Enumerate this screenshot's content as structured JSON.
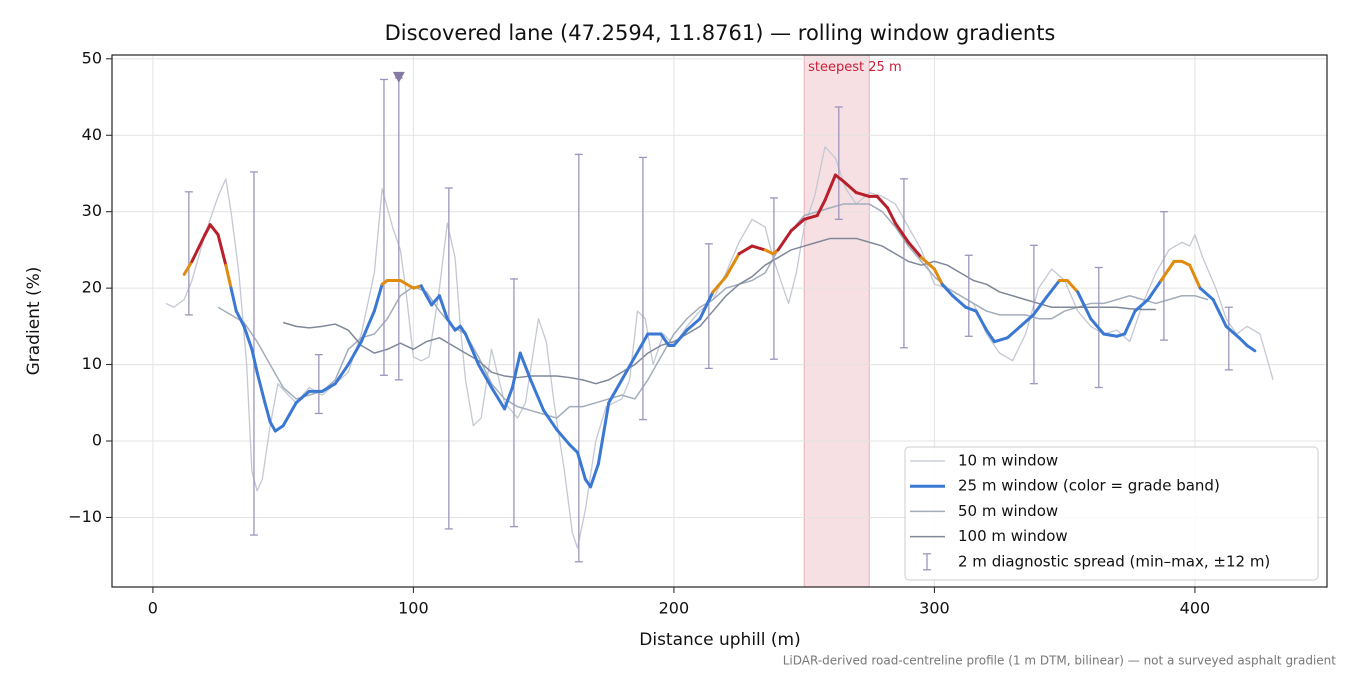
{
  "chart_data": {
    "type": "line",
    "title": "Discovered lane (47.2594, 11.8761) — rolling window gradients",
    "xlabel": "Distance uphill (m)",
    "ylabel": "Gradient (%)",
    "note": "LiDAR-derived road-centreline profile (1 m DTM, bilinear) — not a surveyed asphalt gradient",
    "xlim": [
      -15.7,
      450.7
    ],
    "ylim": [
      -19.1,
      50.5
    ],
    "xticks": [
      0,
      100,
      200,
      300,
      400
    ],
    "yticks": [
      {
        "value": -10,
        "label": "−10"
      },
      0,
      10,
      20,
      30,
      40,
      50
    ],
    "grid": true,
    "legend": "lower right",
    "highlight": {
      "start": 250,
      "end": 275,
      "label": "steepest 25 m",
      "color": "#c8203a"
    },
    "marker": {
      "x": 94.4,
      "y": 47.5,
      "color": "#857aa3"
    },
    "series": [
      {
        "name": "10 m window",
        "color": "#c3c8d3",
        "x": [
          5,
          8,
          12,
          15,
          20,
          25,
          28,
          30,
          33,
          36,
          38,
          40,
          42,
          45,
          48,
          52,
          55,
          60,
          65,
          70,
          75,
          80,
          85,
          88,
          92,
          95,
          97,
          100,
          103,
          106,
          110,
          113,
          116,
          118,
          120,
          123,
          126,
          130,
          135,
          140,
          143,
          148,
          151,
          154,
          158,
          161,
          163,
          166,
          170,
          174,
          180,
          183,
          186,
          189,
          192,
          196,
          200,
          205,
          210,
          215,
          220,
          225,
          230,
          235,
          238,
          242,
          244,
          247,
          250,
          254,
          258,
          262,
          266,
          270,
          275,
          280,
          285,
          290,
          295,
          300,
          305,
          310,
          315,
          320,
          325,
          330,
          335,
          340,
          345,
          350,
          355,
          360,
          365,
          370,
          375,
          380,
          385,
          390,
          395,
          398,
          400,
          403,
          408,
          412,
          416,
          420,
          425,
          430
        ],
        "values": [
          18,
          17.5,
          18.5,
          21,
          27,
          32,
          34.3,
          30,
          22,
          10,
          -4,
          -6.5,
          -5,
          2,
          7.5,
          6,
          5,
          7,
          6,
          7.5,
          9,
          14,
          22,
          33,
          28,
          25,
          20,
          11,
          10.5,
          11,
          20,
          28.5,
          24,
          15,
          8,
          2,
          3,
          12,
          5,
          3,
          5,
          16,
          13,
          5,
          -4,
          -12,
          -14,
          -9,
          0,
          4.5,
          5.5,
          8,
          17,
          16,
          10,
          14,
          12.5,
          15,
          17,
          18.5,
          22,
          26,
          29,
          28,
          24,
          20,
          18,
          22,
          28,
          32,
          38.5,
          37,
          33,
          31,
          32.5,
          32,
          31,
          28,
          25,
          20.5,
          20,
          19,
          18,
          14,
          11.5,
          10.5,
          14,
          20,
          22.5,
          21,
          17,
          15,
          14,
          14.5,
          13,
          18,
          22,
          25,
          26,
          25.5,
          27,
          24,
          20,
          16,
          14,
          15,
          14,
          8
        ]
      },
      {
        "name": "25 m window (color = grade band)",
        "color": "#3a78d4",
        "band_thresholds": [
          20,
          25
        ],
        "band_colors": [
          "#3a78d4",
          "#e08a0e",
          "#b81f2a"
        ],
        "x": [
          12,
          15,
          20,
          22,
          25,
          28,
          30,
          32,
          35,
          38,
          40,
          43,
          45,
          47,
          50,
          55,
          60,
          65,
          70,
          75,
          80,
          85,
          88,
          90,
          95,
          100,
          103,
          105,
          107,
          110,
          113,
          116,
          118,
          120,
          125,
          130,
          135,
          138,
          141,
          145,
          150,
          155,
          160,
          163,
          166,
          168,
          171,
          175,
          180,
          185,
          190,
          195,
          198,
          200,
          205,
          210,
          215,
          220,
          225,
          230,
          235,
          238,
          240,
          245,
          250,
          255,
          258,
          262,
          265,
          270,
          275,
          278,
          282,
          285,
          290,
          295,
          300,
          303,
          307,
          312,
          316,
          320,
          323,
          328,
          333,
          338,
          343,
          348,
          351,
          355,
          360,
          365,
          370,
          373,
          377,
          382,
          387,
          392,
          395,
          398,
          402,
          407,
          412,
          417,
          420,
          423
        ],
        "values": [
          21.8,
          23.5,
          27,
          28.3,
          27,
          23,
          20,
          17,
          15,
          12,
          9,
          5,
          2.5,
          1.3,
          2,
          5,
          6.5,
          6.5,
          7.5,
          10,
          13,
          17,
          20.5,
          21,
          21,
          20,
          20.3,
          19,
          17.8,
          19,
          16,
          14.5,
          15,
          14,
          10,
          7,
          4.2,
          7,
          11.5,
          8,
          4,
          1.5,
          -0.5,
          -1.5,
          -5,
          -6,
          -3,
          5,
          8,
          11,
          14,
          14,
          12.5,
          12.5,
          14.5,
          16,
          19.5,
          21.5,
          24.5,
          25.5,
          25,
          24.5,
          25,
          27.5,
          29,
          29.5,
          31.5,
          34.8,
          34,
          32.5,
          32,
          32,
          30.5,
          28.5,
          26,
          24,
          22.5,
          20.5,
          19,
          17.5,
          17,
          14.5,
          13,
          13.5,
          15,
          16.5,
          18.8,
          21,
          21,
          19.5,
          16,
          14,
          13.7,
          14,
          17,
          18.5,
          21,
          23.5,
          23.5,
          23,
          20,
          18.5,
          15,
          13.5,
          12.5,
          11.8
        ]
      },
      {
        "name": "50 m window",
        "color": "#a3adbb",
        "x": [
          25,
          30,
          35,
          40,
          45,
          50,
          55,
          60,
          65,
          70,
          75,
          80,
          85,
          90,
          95,
          100,
          105,
          110,
          115,
          120,
          125,
          130,
          135,
          140,
          145,
          150,
          155,
          160,
          165,
          170,
          175,
          180,
          185,
          190,
          195,
          200,
          205,
          210,
          215,
          220,
          225,
          230,
          235,
          240,
          245,
          250,
          255,
          260,
          265,
          270,
          275,
          280,
          285,
          290,
          295,
          300,
          305,
          310,
          315,
          320,
          325,
          330,
          335,
          340,
          345,
          350,
          355,
          360,
          365,
          370,
          375,
          380,
          385,
          390,
          395,
          400,
          405
        ],
        "values": [
          17.5,
          16.5,
          15.5,
          13,
          10,
          7,
          5.5,
          6,
          6.5,
          8,
          12,
          13.5,
          14,
          16,
          19,
          20.2,
          19.5,
          17,
          15,
          14,
          11,
          7.5,
          5.5,
          4.5,
          4,
          3.5,
          3,
          4.5,
          4.5,
          5,
          5.5,
          6,
          5.5,
          8,
          11,
          14,
          16,
          17.5,
          18.5,
          20,
          20.5,
          21,
          22,
          25,
          27.5,
          29.5,
          30,
          30.5,
          31,
          31,
          31,
          30,
          28,
          25.5,
          23.5,
          21.5,
          20,
          19,
          18,
          17,
          16.5,
          16.5,
          16.5,
          16,
          16,
          17,
          17.5,
          18,
          18,
          18.5,
          19,
          18.5,
          18,
          18.5,
          19,
          19,
          18.5
        ]
      },
      {
        "name": "100 m window",
        "color": "#7f8899",
        "x": [
          50,
          55,
          60,
          65,
          70,
          75,
          80,
          85,
          90,
          95,
          100,
          105,
          110,
          115,
          120,
          125,
          130,
          135,
          140,
          145,
          150,
          155,
          160,
          165,
          170,
          175,
          180,
          185,
          190,
          195,
          200,
          205,
          210,
          215,
          220,
          225,
          230,
          235,
          240,
          245,
          250,
          255,
          260,
          265,
          270,
          275,
          280,
          285,
          290,
          295,
          300,
          305,
          310,
          315,
          320,
          325,
          330,
          335,
          340,
          345,
          350,
          355,
          360,
          365,
          370,
          375,
          380,
          385
        ],
        "values": [
          15.5,
          15,
          14.8,
          15,
          15.3,
          14.5,
          12.5,
          11.5,
          12,
          12.8,
          12,
          13,
          13.5,
          12.5,
          11.5,
          10.5,
          9,
          8.5,
          8.3,
          8.5,
          8.5,
          8.5,
          8.3,
          8,
          7.5,
          8,
          9,
          10,
          11.5,
          12.5,
          13,
          14,
          15,
          17,
          19,
          20.5,
          21.5,
          23,
          24,
          25,
          25.5,
          26,
          26.5,
          26.5,
          26.5,
          26,
          25.5,
          24.5,
          23.5,
          23,
          23.5,
          23,
          22,
          21,
          20.5,
          19.5,
          19,
          18.5,
          18,
          17.5,
          17.5,
          17.5,
          17.5,
          17.5,
          17.5,
          17.3,
          17.2,
          17.2
        ]
      },
      {
        "name": "2 m diagnostic spread (min–max, ±12 m)",
        "type": "errorbar",
        "color": "#9c96bd",
        "x": [
          13.8,
          38.8,
          63.7,
          88.7,
          94.4,
          113.6,
          138.6,
          163.5,
          188.1,
          213.4,
          238.4,
          263.3,
          288.3,
          313.2,
          338.2,
          363.1,
          388.1,
          413
        ],
        "low": [
          16.5,
          -12.3,
          3.6,
          8.6,
          8,
          -11.5,
          -11.2,
          -15.8,
          2.8,
          9.5,
          10.7,
          29,
          12.2,
          13.7,
          7.5,
          7,
          13.2,
          9.3
        ],
        "high": [
          32.6,
          35.2,
          11.3,
          47.3,
          47.5,
          33.1,
          21.2,
          37.5,
          37.1,
          25.8,
          31.8,
          43.7,
          34.3,
          24.3,
          25.6,
          22.7,
          30,
          17.5
        ]
      }
    ]
  }
}
